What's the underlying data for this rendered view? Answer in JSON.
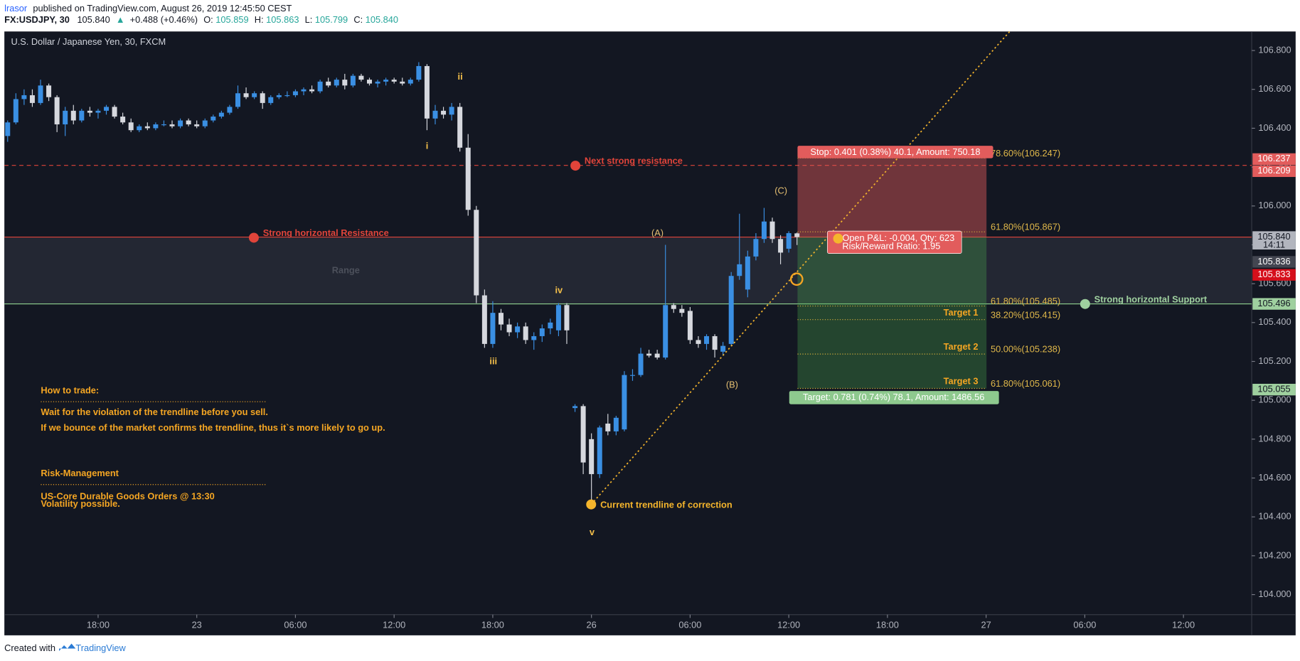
{
  "header": {
    "author": "lrasor",
    "published": "published on TradingView.com, August 26, 2019 12:45:50 CEST",
    "symbol": "FX:USDJPY, 30",
    "last": "105.840",
    "arrow": "▲",
    "change": "+0.488 (+0.46%)",
    "ohlc": [
      [
        "O:",
        "105.859"
      ],
      [
        "H:",
        "105.863"
      ],
      [
        "L:",
        "105.799"
      ],
      [
        "C:",
        "105.840"
      ]
    ]
  },
  "chart_data": {
    "type": "candlestick",
    "title": "U.S. Dollar / Japanese Yen, 30, FXCM",
    "up_color": "#3a8fe3",
    "down_color": "#d6d8de",
    "open": [
      106.36,
      106.43,
      106.55,
      106.57,
      106.53,
      106.62,
      106.56,
      106.42,
      106.49,
      106.44,
      106.49,
      106.48,
      106.49,
      106.51,
      106.46,
      106.43,
      106.39,
      106.41,
      106.4,
      106.42,
      106.42,
      106.41,
      106.44,
      106.42,
      106.41,
      106.44,
      106.46,
      106.48,
      106.51,
      106.58,
      106.56,
      106.58,
      106.53,
      106.56,
      106.57,
      106.57,
      106.59,
      106.6,
      106.59,
      106.64,
      106.62,
      106.65,
      106.62,
      106.67,
      106.65,
      106.63,
      106.64,
      106.65,
      106.64,
      106.63,
      106.65,
      106.72,
      106.45,
      106.49,
      106.47,
      106.51,
      106.3,
      105.98,
      105.54,
      105.29,
      105.45,
      105.39,
      105.35,
      105.38,
      105.31,
      105.33,
      105.37,
      105.36,
      105.49,
      104.96,
      104.97,
      104.8,
      104.62,
      104.88,
      104.84,
      104.85,
      105.13,
      105.13,
      105.24,
      105.24,
      105.22,
      105.49,
      105.47,
      105.46,
      105.31,
      105.29,
      105.33,
      105.25,
      105.29,
      105.64,
      105.57,
      105.74,
      105.83,
      105.92,
      105.83,
      105.78,
      105.859
    ],
    "high": [
      106.44,
      106.58,
      106.6,
      106.6,
      106.65,
      106.63,
      106.57,
      106.51,
      106.52,
      106.5,
      106.51,
      106.5,
      106.52,
      106.52,
      106.48,
      106.45,
      106.42,
      106.43,
      106.43,
      106.44,
      106.44,
      106.45,
      106.45,
      106.44,
      106.45,
      106.47,
      106.49,
      106.52,
      106.62,
      106.61,
      106.59,
      106.59,
      106.57,
      106.58,
      106.59,
      106.6,
      106.61,
      106.62,
      106.65,
      106.66,
      106.66,
      106.68,
      106.68,
      106.68,
      106.66,
      106.65,
      106.66,
      106.66,
      106.66,
      106.66,
      106.74,
      106.73,
      106.52,
      106.51,
      106.53,
      106.53,
      106.37,
      106.0,
      105.57,
      105.51,
      105.47,
      105.42,
      105.4,
      105.4,
      105.35,
      105.39,
      105.42,
      105.5,
      105.5,
      104.98,
      104.98,
      104.83,
      104.87,
      104.93,
      104.92,
      105.15,
      105.16,
      105.27,
      105.26,
      105.26,
      105.8,
      105.5,
      105.49,
      105.48,
      105.33,
      105.34,
      105.34,
      105.3,
      105.66,
      105.96,
      105.77,
      105.86,
      105.99,
      105.94,
      105.85,
      105.87,
      105.863
    ],
    "low": [
      106.33,
      106.42,
      106.52,
      106.51,
      106.52,
      106.54,
      106.38,
      106.36,
      106.42,
      106.43,
      106.46,
      106.45,
      106.47,
      106.45,
      106.42,
      106.38,
      106.38,
      106.39,
      106.39,
      106.41,
      106.4,
      106.4,
      106.41,
      106.4,
      106.4,
      106.43,
      106.45,
      106.47,
      106.5,
      106.55,
      106.55,
      106.5,
      106.52,
      106.55,
      106.56,
      106.56,
      106.57,
      106.58,
      106.58,
      106.61,
      106.61,
      106.6,
      106.61,
      106.64,
      106.62,
      106.61,
      106.62,
      106.63,
      106.62,
      106.62,
      106.64,
      106.39,
      106.42,
      106.45,
      106.44,
      106.28,
      105.95,
      105.5,
      105.27,
      105.27,
      105.36,
      105.33,
      105.32,
      105.29,
      105.26,
      105.3,
      105.34,
      105.33,
      105.29,
      104.94,
      104.62,
      104.48,
      104.6,
      104.82,
      104.82,
      104.84,
      105.1,
      105.12,
      105.22,
      105.21,
      105.21,
      105.45,
      105.43,
      105.29,
      105.27,
      105.26,
      105.22,
      105.23,
      105.28,
      105.62,
      105.53,
      105.72,
      105.81,
      105.81,
      105.7,
      105.76,
      105.799
    ],
    "close": [
      106.43,
      106.55,
      106.57,
      106.53,
      106.62,
      106.56,
      106.42,
      106.49,
      106.44,
      106.49,
      106.48,
      106.49,
      106.51,
      106.46,
      106.43,
      106.39,
      106.41,
      106.4,
      106.42,
      106.42,
      106.41,
      106.44,
      106.42,
      106.41,
      106.44,
      106.46,
      106.48,
      106.51,
      106.58,
      106.56,
      106.58,
      106.53,
      106.56,
      106.57,
      106.57,
      106.59,
      106.6,
      106.59,
      106.64,
      106.62,
      106.65,
      106.62,
      106.67,
      106.65,
      106.63,
      106.64,
      106.65,
      106.64,
      106.63,
      106.65,
      106.72,
      106.45,
      106.49,
      106.47,
      106.51,
      106.3,
      105.98,
      105.54,
      105.29,
      105.45,
      105.39,
      105.35,
      105.38,
      105.31,
      105.33,
      105.37,
      105.4,
      105.49,
      105.36,
      104.97,
      104.68,
      104.62,
      104.86,
      104.84,
      104.91,
      105.13,
      105.13,
      105.24,
      105.23,
      105.22,
      105.49,
      105.47,
      105.45,
      105.31,
      105.29,
      105.33,
      105.26,
      105.28,
      105.64,
      105.7,
      105.74,
      105.83,
      105.92,
      105.83,
      105.76,
      105.86,
      105.84
    ],
    "xlim": [
      -0.4,
      151.3
    ],
    "xticks": [
      {
        "value": 11,
        "label": "18:00"
      },
      {
        "value": 23,
        "label": "23"
      },
      {
        "value": 35,
        "label": "06:00"
      },
      {
        "value": 47,
        "label": "12:00"
      },
      {
        "value": 59,
        "label": "18:00"
      },
      {
        "value": 71,
        "label": "26"
      },
      {
        "value": 83,
        "label": "06:00"
      },
      {
        "value": 95,
        "label": "12:00"
      },
      {
        "value": 107,
        "label": "18:00"
      },
      {
        "value": 119,
        "label": "27"
      },
      {
        "value": 131,
        "label": "06:00"
      },
      {
        "value": 143,
        "label": "12:00"
      }
    ],
    "ylim": [
      103.897,
      106.898
    ],
    "yticks": [
      {
        "value": 104.0,
        "label": "104.000"
      },
      {
        "value": 104.2,
        "label": "104.200"
      },
      {
        "value": 104.4,
        "label": "104.400"
      },
      {
        "value": 104.6,
        "label": "104.600"
      },
      {
        "value": 104.8,
        "label": "104.800"
      },
      {
        "value": 105.0,
        "label": "105.000"
      },
      {
        "value": 105.2,
        "label": "105.200"
      },
      {
        "value": 105.4,
        "label": "105.400"
      },
      {
        "value": 105.6,
        "label": "105.600"
      },
      {
        "value": 105.8,
        "label": "105.800"
      },
      {
        "value": 106.0,
        "label": "106.000"
      },
      {
        "value": 106.2,
        "label": "106.200"
      },
      {
        "value": 106.4,
        "label": "106.400"
      },
      {
        "value": 106.6,
        "label": "106.600"
      },
      {
        "value": 106.8,
        "label": "106.800"
      }
    ],
    "price_badges": {
      "values": [
        106.237,
        106.209,
        {
          "value": 105.84,
          "label": "105.840"
        },
        105.836,
        105.833,
        105.496,
        105.055
      ],
      "colors": [
        "#e25c5c",
        "#e25c5c",
        "#b2b5be",
        "#434651",
        "#d50f1b",
        "#9fd09f",
        "#9fd09f"
      ],
      "text_colors": [
        "#ffffff",
        "#ffffff",
        "#131722",
        "#ffffff",
        "#ffffff",
        "#131722",
        "#131722"
      ],
      "countdown": "14:11"
    },
    "fib_levels": [
      {
        "value": 106.247,
        "label": "78.60%(106.247)"
      },
      {
        "value": 105.867,
        "label": "61.80%(105.867)"
      },
      {
        "value": 105.485,
        "label": "61.80%(105.485)"
      },
      {
        "value": 105.415,
        "label": "38.20%(105.415)"
      },
      {
        "value": 105.238,
        "label": "50.00%(105.238)"
      },
      {
        "value": 105.061,
        "label": "61.80%(105.061)"
      }
    ],
    "targets": [
      "Target 1",
      "Target 2",
      "Target 3"
    ],
    "position": {
      "stop": "Stop: 0.401 (0.38%) 40.1, Amount: 750.18",
      "pnl": "Open P&L: -0.004, Qty: 623",
      "rr": "Risk/Reward Ratio: 1.95",
      "target": "Target: 0.781 (0.74%) 78.1, Amount: 1486.56"
    },
    "annotations": {
      "next_resistance": "Next strong resistance",
      "resistance": "Strong horizontal Resistance",
      "support": "Strong horizontal Support",
      "trendline": "Current trendline of correction",
      "range": "Range"
    },
    "waves": [
      "i",
      "ii",
      "iii",
      "iv",
      "v",
      "(A)",
      "(B)",
      "(C)"
    ],
    "notes": {
      "how_title": "How to trade:",
      "how_lines": [
        "Wait for the violation of the trendline before you sell.",
        "If we bounce of the market confirms the trendline, thus it`s more likely to go up."
      ],
      "risk_title": "Risk-Management",
      "risk_lines": [
        "US-Core Durable Goods Orders @ 13:30",
        "Volatility possible."
      ]
    }
  },
  "footer": {
    "created": "Created with",
    "brand": "TradingView"
  }
}
